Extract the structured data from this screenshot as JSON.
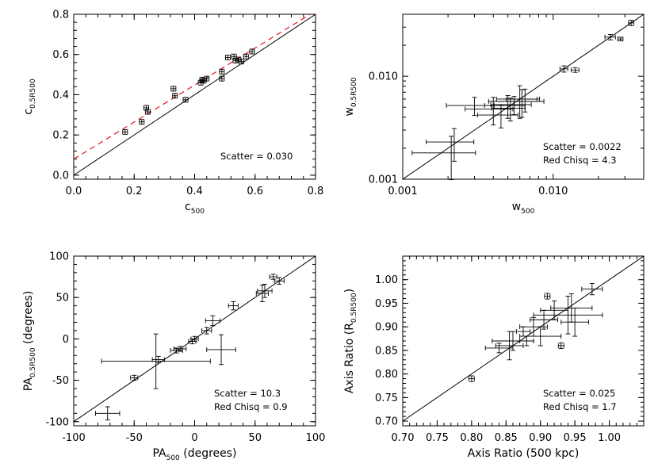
{
  "chart_data": [
    {
      "type": "scatter",
      "title": "",
      "xlabel": "c",
      "xlabel_sub": "500",
      "ylabel": "c",
      "ylabel_sub": "0.5R500",
      "xscale": "linear",
      "yscale": "linear",
      "xlim": [
        0,
        0.8
      ],
      "ylim": [
        -0.02,
        0.8
      ],
      "xticks": [
        0,
        0.2,
        0.4,
        0.6,
        0.8
      ],
      "xticklabels": [
        "0.0",
        "0.2",
        "0.4",
        "0.6",
        "0.8"
      ],
      "yticks": [
        0,
        0.2,
        0.4,
        0.6,
        0.8
      ],
      "yticklabels": [
        "0.0",
        "0.2",
        "0.4",
        "0.6",
        "0.8"
      ],
      "annotations": [
        "Scatter = 0.030"
      ],
      "reference_line": "y = x",
      "fit_line": {
        "slope": 0.92,
        "intercept": 0.08,
        "color": "#e8131a",
        "style": "dashed"
      },
      "x": [
        0.17,
        0.225,
        0.24,
        0.245,
        0.33,
        0.335,
        0.37,
        0.42,
        0.425,
        0.43,
        0.44,
        0.49,
        0.49,
        0.51,
        0.53,
        0.535,
        0.545,
        0.555,
        0.57,
        0.59
      ],
      "y": [
        0.215,
        0.265,
        0.335,
        0.315,
        0.43,
        0.395,
        0.375,
        0.46,
        0.475,
        0.47,
        0.48,
        0.515,
        0.48,
        0.585,
        0.59,
        0.57,
        0.575,
        0.565,
        0.59,
        0.615
      ],
      "xerr": [
        0.008,
        0.008,
        0.008,
        0.008,
        0.008,
        0.008,
        0.008,
        0.008,
        0.008,
        0.008,
        0.008,
        0.008,
        0.008,
        0.008,
        0.008,
        0.008,
        0.008,
        0.008,
        0.008,
        0.008
      ],
      "yerr": [
        0.012,
        0.012,
        0.012,
        0.012,
        0.012,
        0.012,
        0.012,
        0.012,
        0.012,
        0.012,
        0.012,
        0.012,
        0.012,
        0.012,
        0.012,
        0.012,
        0.012,
        0.012,
        0.012,
        0.012
      ]
    },
    {
      "type": "scatter",
      "title": "",
      "xlabel": "w",
      "xlabel_sub": "500",
      "ylabel": "w",
      "ylabel_sub": "0.5R500",
      "xscale": "log",
      "yscale": "log",
      "xlim": [
        0.001,
        0.04
      ],
      "ylim": [
        0.001,
        0.04
      ],
      "xticks": [
        0.001,
        0.01
      ],
      "xticklabels": [
        "0.001",
        "0.010"
      ],
      "yticks": [
        0.001,
        0.01
      ],
      "yticklabels": [
        "0.001",
        "0.010"
      ],
      "annotations": [
        "Scatter = 0.0022",
        "Red Chisq =  4.3"
      ],
      "reference_line": "y = x",
      "x": [
        0.0021,
        0.0022,
        0.003,
        0.004,
        0.0045,
        0.005,
        0.0052,
        0.0055,
        0.006,
        0.0062,
        0.0065,
        0.0118,
        0.014,
        0.024,
        0.028,
        0.033
      ],
      "y": [
        0.0018,
        0.0023,
        0.0052,
        0.0048,
        0.0042,
        0.0052,
        0.0049,
        0.0053,
        0.006,
        0.0057,
        0.006,
        0.0118,
        0.0115,
        0.024,
        0.023,
        0.033
      ],
      "xerr_frac": [
        0.45,
        0.35,
        0.35,
        0.35,
        0.3,
        0.3,
        0.25,
        0.3,
        0.3,
        0.4,
        0.25,
        0.06,
        0.06,
        0.08,
        0.04,
        0.04
      ],
      "yerr_frac": [
        0.45,
        0.35,
        0.2,
        0.3,
        0.25,
        0.25,
        0.25,
        0.2,
        0.35,
        0.3,
        0.25,
        0.07,
        0.05,
        0.06,
        0.04,
        0.06
      ]
    },
    {
      "type": "scatter",
      "title": "",
      "xlabel": "PA",
      "xlabel_sub": "500",
      "xlabel_suffix": " (degrees)",
      "ylabel": "PA",
      "ylabel_sub": "0.5R500",
      "ylabel_suffix": " (degrees)",
      "xscale": "linear",
      "yscale": "linear",
      "xlim": [
        -100,
        100
      ],
      "ylim": [
        -105,
        100
      ],
      "xticks": [
        -100,
        -50,
        0,
        50,
        100
      ],
      "xticklabels": [
        "-100",
        "-50",
        "0",
        "50",
        "100"
      ],
      "yticks": [
        -100,
        -50,
        0,
        50,
        100
      ],
      "yticklabels": [
        "-100",
        "-50",
        "0",
        "50",
        "100"
      ],
      "annotations": [
        "Scatter = 10.3",
        "Red Chisq =  0.9"
      ],
      "reference_line": "y = x",
      "x": [
        -72,
        -50,
        -32,
        -30,
        -15,
        -12,
        -2,
        0,
        10,
        15,
        22,
        32,
        56,
        58,
        65,
        70
      ],
      "y": [
        -90,
        -47,
        -27,
        -25,
        -14,
        -12,
        -3,
        0,
        10,
        22,
        -13,
        40,
        55,
        58,
        75,
        70
      ],
      "xerr": [
        10,
        3,
        45,
        5,
        5,
        5,
        3,
        3,
        4,
        6,
        12,
        4,
        5,
        6,
        3,
        4
      ],
      "yerr": [
        8,
        3,
        33,
        4,
        3,
        3,
        3,
        3,
        4,
        6,
        18,
        5,
        10,
        8,
        3,
        4
      ]
    },
    {
      "type": "scatter",
      "title": "",
      "xlabel": "Axis Ratio (500 kpc)",
      "ylabel": "Axis Ratio (R",
      "ylabel_sub": "0.5R500",
      "ylabel_suffix": ")",
      "xscale": "linear",
      "yscale": "linear",
      "xlim": [
        0.7,
        1.05
      ],
      "ylim": [
        0.69,
        1.05
      ],
      "xticks": [
        0.7,
        0.75,
        0.8,
        0.85,
        0.9,
        0.95,
        1.0
      ],
      "xticklabels": [
        "0.70",
        "0.75",
        "0.80",
        "0.85",
        "0.90",
        "0.95",
        "1.00"
      ],
      "yticks": [
        0.7,
        0.75,
        0.8,
        0.85,
        0.9,
        0.95,
        1.0
      ],
      "yticklabels": [
        "0.70",
        "0.75",
        "0.80",
        "0.85",
        "0.90",
        "0.95",
        "1.00"
      ],
      "annotations": [
        "Scatter = 0.025",
        "Red Chisq =  1.7"
      ],
      "reference_line": "y = x",
      "x": [
        0.8,
        0.84,
        0.855,
        0.86,
        0.875,
        0.88,
        0.89,
        0.9,
        0.905,
        0.91,
        0.92,
        0.93,
        0.94,
        0.945,
        0.95,
        0.975
      ],
      "y": [
        0.79,
        0.855,
        0.86,
        0.87,
        0.89,
        0.87,
        0.9,
        0.88,
        0.915,
        0.965,
        0.935,
        0.86,
        0.925,
        0.94,
        0.91,
        0.98
      ],
      "xerr": [
        0.004,
        0.02,
        0.02,
        0.03,
        0.01,
        0.01,
        0.02,
        0.03,
        0.02,
        0.004,
        0.02,
        0.004,
        0.05,
        0.03,
        0.02,
        0.015
      ],
      "yerr": [
        0.006,
        0.01,
        0.03,
        0.02,
        0.01,
        0.01,
        0.02,
        0.02,
        0.02,
        0.006,
        0.02,
        0.006,
        0.04,
        0.03,
        0.03,
        0.012
      ]
    }
  ]
}
